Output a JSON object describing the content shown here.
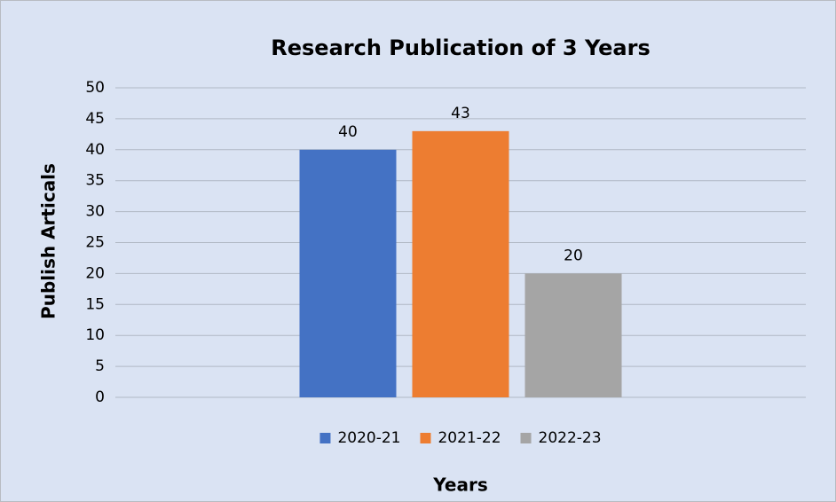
{
  "chart_data": {
    "type": "bar",
    "title": "Research Publication of 3 Years",
    "x_label": "Years",
    "y_label": "Publish Articals",
    "categories": [
      null
    ],
    "series": [
      {
        "name": "2020-21",
        "color": "#4472c4",
        "values": [
          40
        ]
      },
      {
        "name": "2021-22",
        "color": "#ed7d31",
        "values": [
          43
        ]
      },
      {
        "name": "2022-23",
        "color": "#a5a5a5",
        "values": [
          20
        ]
      }
    ],
    "ylim": [
      0,
      50
    ],
    "yticks": [
      0,
      5,
      10,
      15,
      20,
      25,
      30,
      35,
      40,
      45,
      50
    ],
    "grid": true,
    "legend": "bottom"
  }
}
